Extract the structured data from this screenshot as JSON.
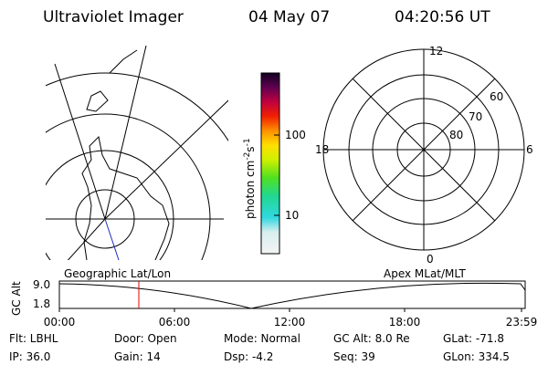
{
  "header": {
    "title": "Ultraviolet Imager",
    "date": "04 May 07",
    "time": "04:20:56 UT"
  },
  "colorbar": {
    "label": "photon cm",
    "exp1": "-2",
    "unit2": "s",
    "exp2": "-1",
    "tick_high": "100",
    "tick_low": "10"
  },
  "polar": {
    "top": "12",
    "bottom": "0",
    "left": "18",
    "right": "6",
    "rings": [
      "60",
      "70",
      "80"
    ]
  },
  "timeline": {
    "left_label": "Geographic Lat/Lon",
    "right_label": "Apex MLat/MLT",
    "axis_label": "GC Alt",
    "y_high": "9.0",
    "y_low": "1.8",
    "times": [
      "00:00",
      "06:00",
      "12:00",
      "18:00",
      "23:59"
    ]
  },
  "footer": {
    "row1": [
      "Flt: LBHL",
      "Door: Open",
      "Mode: Normal",
      "GC Alt: 8.0 Re",
      "GLat: -71.8"
    ],
    "row2": [
      "IP: 36.0",
      "Gain: 14",
      "Dsp:    -4.2",
      "Seq: 39",
      "GLon: 334.5"
    ]
  }
}
